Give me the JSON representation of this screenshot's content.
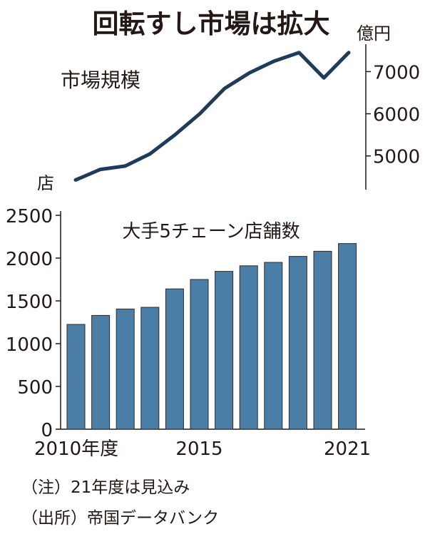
{
  "title": "回転すし市場は拡大",
  "chart_data": [
    {
      "type": "line",
      "title": "市場規模",
      "unit": "億円",
      "x": [
        2010,
        2011,
        2012,
        2013,
        2014,
        2015,
        2016,
        2017,
        2018,
        2019,
        2020,
        2021
      ],
      "series": [
        {
          "values": [
            4430,
            4680,
            4760,
            5050,
            5500,
            6000,
            6600,
            6970,
            7250,
            7450,
            6850,
            7450
          ]
        }
      ],
      "y_ticks": [
        "5000",
        "6000",
        "7000"
      ],
      "ylim": [
        4200,
        7650
      ],
      "axis": "right",
      "line_color": "#1f3b5c"
    },
    {
      "type": "bar",
      "title": "大手5チェーン店舗数",
      "unit": "店",
      "categories": [
        2010,
        2011,
        2012,
        2013,
        2014,
        2015,
        2016,
        2017,
        2018,
        2019,
        2020,
        2021
      ],
      "series": [
        {
          "values": [
            1225,
            1330,
            1405,
            1425,
            1640,
            1750,
            1845,
            1910,
            1950,
            2020,
            2080,
            2170
          ]
        }
      ],
      "x_labels": [
        {
          "index": 0,
          "text": "2010年度"
        },
        {
          "index": 5,
          "text": "2015"
        },
        {
          "index": 11,
          "text": "2021"
        }
      ],
      "y_ticks": [
        "0",
        "500",
        "1000",
        "1500",
        "2000",
        "2500"
      ],
      "ylim": [
        0,
        2550
      ],
      "bar_color": "#4b7ea6",
      "bar_edge": "#2b2b2b"
    }
  ],
  "notes": {
    "note1": "（注）21年度は見込み",
    "note2": "（出所）帝国データバンク"
  }
}
